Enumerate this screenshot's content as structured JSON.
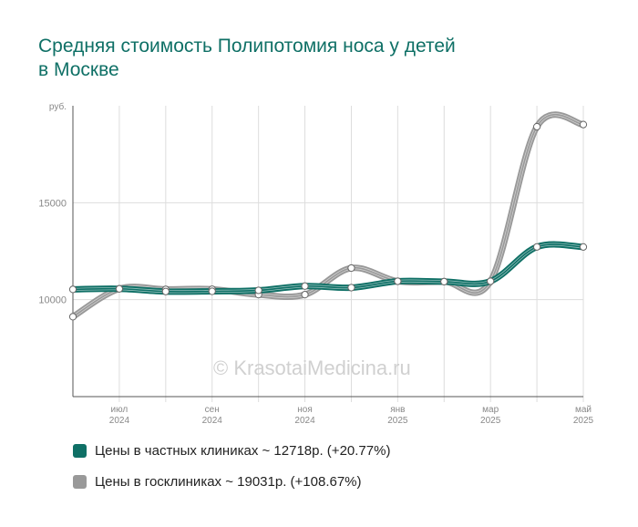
{
  "title_lines": [
    "Средняя стоимость Полипотомия носа у детей",
    "в Москве"
  ],
  "watermark": "© KrasotaiMedicina.ru",
  "legend": [
    {
      "label": "Цены в частных клиниках ~ 12718р. (+20.77%)",
      "color": "#0f7066"
    },
    {
      "label": "Цены в госклиниках ~ 19031р. (+108.67%)",
      "color": "#999999"
    }
  ],
  "chart_data": {
    "type": "line",
    "title": "Средняя стоимость Полипотомия носа у детей в Москве",
    "y_unit": "руб.",
    "yticks": [
      10000,
      15000
    ],
    "ylim": [
      5000,
      20000
    ],
    "x": [
      "2024-06",
      "2024-07",
      "2024-08",
      "2024-09",
      "2024-10",
      "2024-11",
      "2024-12",
      "2025-01",
      "2025-02",
      "2025-03",
      "2025-04",
      "2025-05"
    ],
    "xtick_labels": [
      {
        "index": 1,
        "month": "июл",
        "year": "2024"
      },
      {
        "index": 3,
        "month": "сен",
        "year": "2024"
      },
      {
        "index": 5,
        "month": "ноя",
        "year": "2024"
      },
      {
        "index": 7,
        "month": "янв",
        "year": "2025"
      },
      {
        "index": 9,
        "month": "мар",
        "year": "2025"
      },
      {
        "index": 11,
        "month": "май",
        "year": "2025"
      }
    ],
    "grid": true,
    "series": [
      {
        "name": "Цены в частных клиниках",
        "color": "#0f7066",
        "values": [
          10530,
          10560,
          10420,
          10430,
          10480,
          10700,
          10620,
          10950,
          10930,
          10950,
          12720,
          12718
        ]
      },
      {
        "name": "Цены в госклиниках",
        "color": "#999999",
        "values": [
          9120,
          10560,
          10530,
          10540,
          10260,
          10260,
          11630,
          10950,
          10930,
          10950,
          18920,
          19031
        ]
      }
    ]
  }
}
